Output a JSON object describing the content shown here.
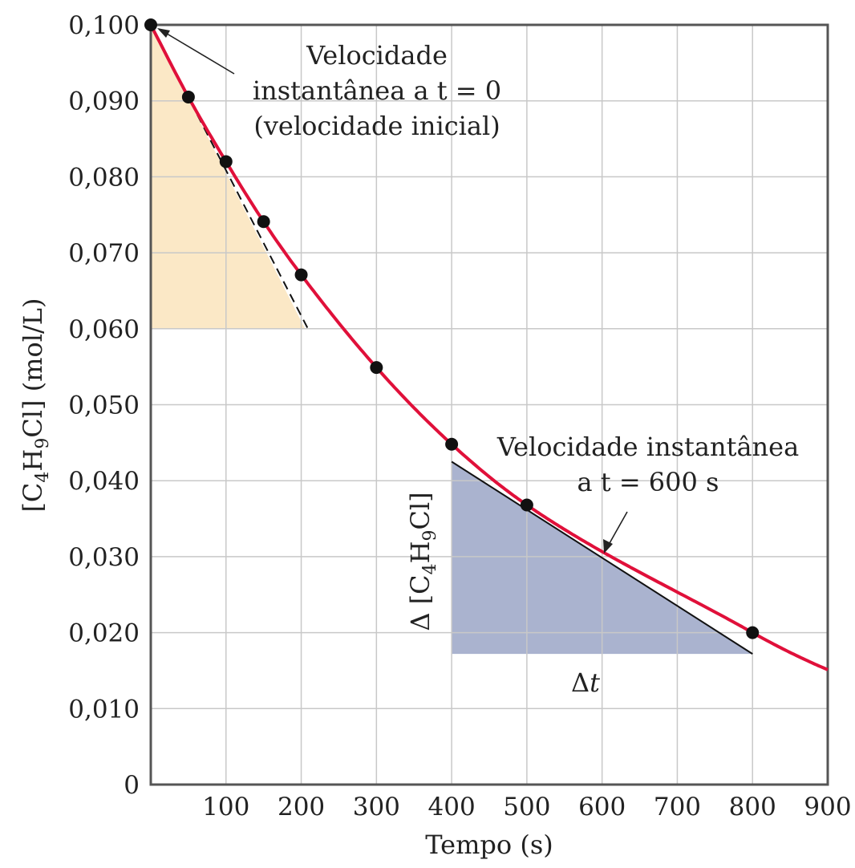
{
  "chart_data": {
    "type": "line",
    "title": "",
    "xlabel": "Tempo (s)",
    "ylabel": "[C4H9Cl] (mol/L)",
    "ylabel_parts": [
      "[C",
      "4",
      "H",
      "9",
      "Cl] (mol/L)"
    ],
    "xlim": [
      0,
      900
    ],
    "ylim": [
      0,
      0.1
    ],
    "x_ticks": [
      100,
      200,
      300,
      400,
      500,
      600,
      700,
      800,
      900
    ],
    "x_tick_labels": [
      "100",
      "200",
      "300",
      "400",
      "500",
      "600",
      "700",
      "800",
      "900"
    ],
    "y_ticks": [
      0,
      0.01,
      0.02,
      0.03,
      0.04,
      0.05,
      0.06,
      0.07,
      0.08,
      0.09,
      0.1
    ],
    "y_tick_labels": [
      "0",
      "0,010",
      "0,020",
      "0,030",
      "0,040",
      "0,050",
      "0,060",
      "0,070",
      "0,080",
      "0,090",
      "0,100"
    ],
    "grid": true,
    "curve_color": "#e0103a",
    "series": [
      {
        "x": [
          0,
          50,
          100,
          150,
          200,
          300,
          400,
          500,
          800
        ],
        "y": [
          0.1,
          0.0905,
          0.082,
          0.0741,
          0.0671,
          0.0549,
          0.0448,
          0.0368,
          0.02
        ]
      }
    ],
    "tangents": [
      {
        "at_x": 0,
        "x": [
          0,
          210
        ],
        "y": [
          0.1,
          0.0598
        ],
        "style": "dashed",
        "triangle_color": "#fbe8c6",
        "triangle": {
          "x": [
            0,
            205
          ],
          "y": [
            0.1,
            0.06
          ]
        }
      },
      {
        "at_x": 600,
        "x": [
          400,
          800
        ],
        "y": [
          0.0425,
          0.0172
        ],
        "style": "solid",
        "triangle_color": "#aab3cf"
      }
    ],
    "annotations": [
      {
        "lines": [
          "Velocidade",
          "instantânea a t = 0",
          "(velocidade inicial)"
        ]
      },
      {
        "lines": [
          "Velocidade instantânea",
          "a t = 600 s"
        ]
      }
    ],
    "delta_y_label": "Δ [C4H9Cl]",
    "delta_y_parts": [
      "Δ [C",
      "4",
      "H",
      "9",
      "Cl]"
    ],
    "delta_t_label": "Δt",
    "delta_t_parts": [
      "Δ",
      "t"
    ]
  }
}
